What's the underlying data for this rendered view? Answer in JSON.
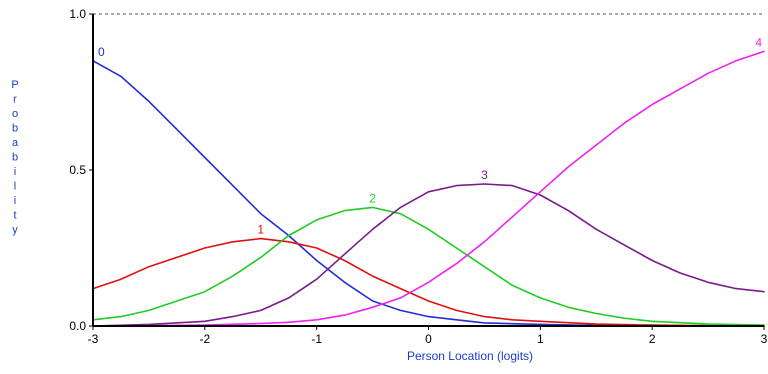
{
  "chart_data": {
    "type": "line",
    "title": "",
    "xlabel": "Person Location (logits)",
    "ylabel": "Probability",
    "xlim": [
      -3,
      3
    ],
    "ylim": [
      0,
      1
    ],
    "x_ticks": [
      "-3",
      "-2",
      "-1",
      "0",
      "1",
      "2",
      "3"
    ],
    "y_ticks": [
      "0.0",
      "0.5",
      "1.0"
    ],
    "reference_line": {
      "y": 1.0,
      "style": "dashed"
    },
    "series": [
      {
        "name": "0",
        "color": "#1f2fd6",
        "x": [
          -3,
          -2.75,
          -2.5,
          -2.25,
          -2,
          -1.75,
          -1.5,
          -1.25,
          -1,
          -0.75,
          -0.5,
          -0.25,
          0,
          0.25,
          0.5,
          1,
          1.5,
          2,
          2.5,
          3
        ],
        "y": [
          0.85,
          0.8,
          0.72,
          0.63,
          0.54,
          0.45,
          0.36,
          0.29,
          0.21,
          0.14,
          0.08,
          0.05,
          0.03,
          0.02,
          0.01,
          0.005,
          0.002,
          0.001,
          0.0,
          0.0
        ]
      },
      {
        "name": "1",
        "color": "#e01010",
        "x": [
          -3,
          -2.75,
          -2.5,
          -2.25,
          -2,
          -1.75,
          -1.5,
          -1.25,
          -1,
          -0.75,
          -0.5,
          -0.25,
          0,
          0.25,
          0.5,
          0.75,
          1,
          1.5,
          2,
          2.5,
          3
        ],
        "y": [
          0.12,
          0.15,
          0.19,
          0.22,
          0.25,
          0.27,
          0.28,
          0.27,
          0.25,
          0.21,
          0.16,
          0.12,
          0.08,
          0.05,
          0.03,
          0.02,
          0.015,
          0.006,
          0.003,
          0.001,
          0.0
        ]
      },
      {
        "name": "2",
        "color": "#22cc22",
        "x": [
          -3,
          -2.75,
          -2.5,
          -2.25,
          -2,
          -1.75,
          -1.5,
          -1.25,
          -1,
          -0.75,
          -0.5,
          -0.25,
          0,
          0.25,
          0.5,
          0.75,
          1,
          1.25,
          1.5,
          1.75,
          2,
          2.5,
          3
        ],
        "y": [
          0.02,
          0.03,
          0.05,
          0.08,
          0.11,
          0.16,
          0.22,
          0.29,
          0.34,
          0.37,
          0.38,
          0.36,
          0.31,
          0.25,
          0.19,
          0.13,
          0.09,
          0.06,
          0.04,
          0.025,
          0.015,
          0.006,
          0.003
        ]
      },
      {
        "name": "3",
        "color": "#7a1a8c",
        "x": [
          -3,
          -2.5,
          -2,
          -1.75,
          -1.5,
          -1.25,
          -1,
          -0.75,
          -0.5,
          -0.25,
          0,
          0.25,
          0.5,
          0.75,
          1,
          1.25,
          1.5,
          1.75,
          2,
          2.25,
          2.5,
          2.75,
          3
        ],
        "y": [
          0.0,
          0.005,
          0.015,
          0.03,
          0.05,
          0.09,
          0.15,
          0.23,
          0.31,
          0.38,
          0.43,
          0.45,
          0.455,
          0.45,
          0.42,
          0.37,
          0.31,
          0.26,
          0.21,
          0.17,
          0.14,
          0.12,
          0.11
        ]
      },
      {
        "name": "4",
        "color": "#ee22ee",
        "x": [
          -3,
          -2.5,
          -2,
          -1.5,
          -1.25,
          -1,
          -0.75,
          -0.5,
          -0.25,
          0,
          0.25,
          0.5,
          0.75,
          1,
          1.25,
          1.5,
          1.75,
          2,
          2.25,
          2.5,
          2.75,
          3
        ],
        "y": [
          0.0,
          0.001,
          0.003,
          0.008,
          0.012,
          0.02,
          0.035,
          0.06,
          0.09,
          0.14,
          0.2,
          0.27,
          0.35,
          0.43,
          0.51,
          0.58,
          0.65,
          0.71,
          0.76,
          0.81,
          0.85,
          0.88
        ]
      }
    ]
  }
}
